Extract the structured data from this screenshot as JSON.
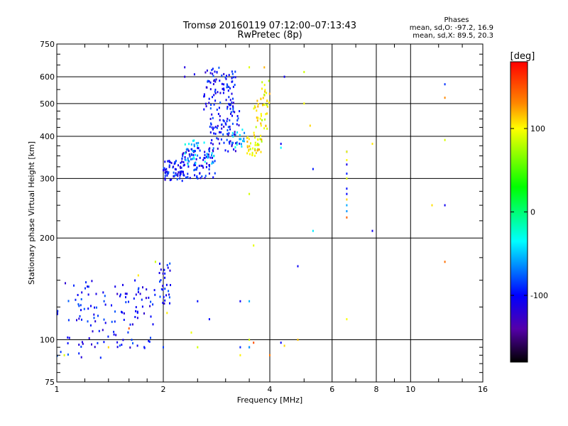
{
  "chart_data": {
    "type": "scatter",
    "title": "Tromsø 20160119 07:12:00–07:13:43",
    "subtitle": "RwPretec (8p)",
    "xlabel": "Frequency [MHz]",
    "ylabel": "Stationary phase Virtual Height [km]",
    "xscale": "log",
    "yscale": "log",
    "xlim": [
      1,
      16
    ],
    "ylim": [
      75,
      750
    ],
    "x_ticks": [
      1,
      2,
      4,
      6,
      8,
      10,
      16
    ],
    "y_ticks": [
      75,
      100,
      200,
      300,
      400,
      500,
      600,
      750
    ],
    "grid": true,
    "stats": {
      "heading": "Phases",
      "line_o": "mean, sd,O: -97.2, 16.9",
      "line_x": "mean, sd,X:  89.5, 20.3"
    },
    "colorbar": {
      "label": "[deg]",
      "range": [
        -180,
        180
      ],
      "ticks": [
        100,
        0,
        -100
      ],
      "colors": [
        "#ff0000",
        "#ff8800",
        "#ffff00",
        "#00ff00",
        "#00ffff",
        "#0000ff",
        "#5500aa",
        "#000000"
      ]
    },
    "series": [
      {
        "mode": "O",
        "phase_deg": -100,
        "regions": [
          {
            "x": [
              1.0,
              1.9
            ],
            "y": [
              110,
              150
            ],
            "n": 90
          },
          {
            "x": [
              1.0,
              1.85
            ],
            "y": [
              88,
              105
            ],
            "n": 25
          },
          {
            "x": [
              1.15,
              1.6
            ],
            "y": [
              95,
              108
            ],
            "n": 15
          },
          {
            "x": [
              1.95,
              2.1
            ],
            "y": [
              125,
              170
            ],
            "n": 30
          },
          {
            "x": [
              2.6,
              3.2
            ],
            "y": [
              480,
              640
            ],
            "n": 90
          },
          {
            "x": [
              2.7,
              3.3
            ],
            "y": [
              360,
              480
            ],
            "n": 80
          },
          {
            "x": [
              2.0,
              2.3
            ],
            "y": [
              295,
              340
            ],
            "n": 70
          },
          {
            "x": [
              2.25,
              2.8
            ],
            "y": [
              300,
              370
            ],
            "n": 90
          }
        ],
        "points": [
          [
            2.3,
            600
          ],
          [
            2.3,
            640
          ],
          [
            2.45,
            610
          ],
          [
            4.4,
            600
          ],
          [
            4.3,
            380
          ],
          [
            5.3,
            320
          ],
          [
            6.6,
            360
          ],
          [
            6.6,
            330
          ],
          [
            6.6,
            310
          ],
          [
            6.6,
            280
          ],
          [
            6.6,
            270
          ],
          [
            7.8,
            210
          ],
          [
            4.8,
            165
          ],
          [
            12.5,
            570
          ],
          [
            12.5,
            250
          ],
          [
            2.5,
            130
          ],
          [
            2.7,
            115
          ],
          [
            3.3,
            130
          ],
          [
            3.3,
            95
          ],
          [
            4.3,
            98
          ],
          [
            2.0,
            95
          ],
          [
            3.5,
            95
          ]
        ]
      },
      {
        "mode": "O",
        "phase_deg": -50,
        "regions": [
          {
            "x": [
              2.3,
              2.8
            ],
            "y": [
              330,
              390
            ],
            "n": 35
          },
          {
            "x": [
              3.1,
              3.4
            ],
            "y": [
              370,
              420
            ],
            "n": 18
          }
        ],
        "points": [
          [
            5.3,
            210
          ],
          [
            3.5,
            95
          ],
          [
            6.6,
            240
          ],
          [
            6.6,
            250
          ],
          [
            4.3,
            370
          ],
          [
            3.5,
            130
          ]
        ]
      },
      {
        "mode": "X",
        "phase_deg": 100,
        "regions": [
          {
            "x": [
              3.45,
              3.8
            ],
            "y": [
              350,
              400
            ],
            "n": 40
          },
          {
            "x": [
              3.6,
              3.95
            ],
            "y": [
              400,
              520
            ],
            "n": 35
          },
          {
            "x": [
              3.75,
              4.0
            ],
            "y": [
              500,
              640
            ],
            "n": 15
          }
        ],
        "points": [
          [
            3.5,
            640
          ],
          [
            5.0,
            620
          ],
          [
            5.0,
            500
          ],
          [
            5.2,
            430
          ],
          [
            7.8,
            380
          ],
          [
            12.5,
            390
          ],
          [
            11.5,
            250
          ],
          [
            6.6,
            360
          ],
          [
            6.6,
            340
          ],
          [
            6.6,
            300
          ],
          [
            6.6,
            260
          ],
          [
            3.5,
            270
          ],
          [
            4.4,
            96
          ],
          [
            4.8,
            100
          ],
          [
            3.5,
            100
          ],
          [
            2.5,
            95
          ],
          [
            1.4,
            95
          ],
          [
            1.05,
            90
          ],
          [
            3.6,
            190
          ],
          [
            1.9,
            170
          ],
          [
            1.7,
            155
          ],
          [
            2.05,
            120
          ],
          [
            6.6,
            115
          ],
          [
            2.4,
            105
          ],
          [
            3.3,
            90
          ]
        ]
      },
      {
        "mode": "X",
        "phase_deg": 140,
        "points": [
          [
            12.5,
            520
          ],
          [
            12.5,
            170
          ],
          [
            6.6,
            230
          ],
          [
            4.0,
            90
          ],
          [
            3.6,
            98
          ],
          [
            1.6,
            108
          ]
        ]
      }
    ]
  }
}
